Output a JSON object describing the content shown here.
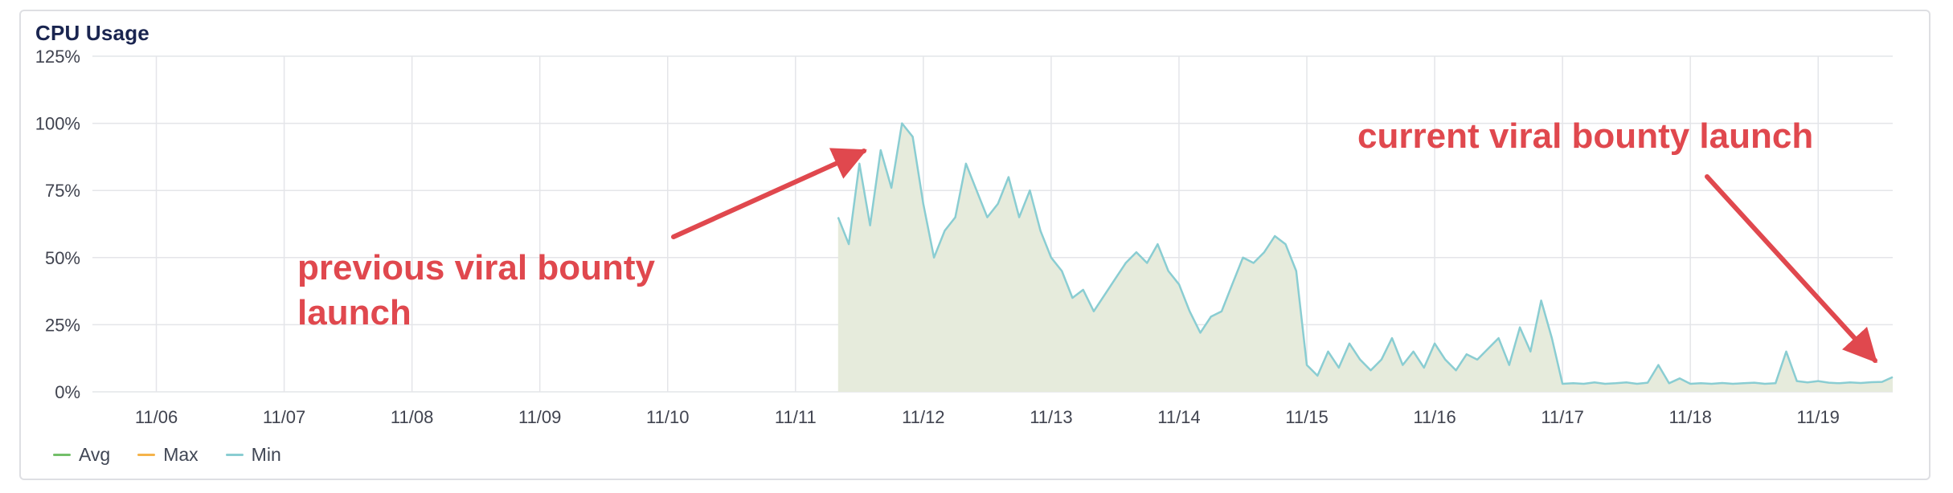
{
  "panel": {
    "title": "CPU Usage"
  },
  "colors": {
    "avg": "#73bf69",
    "max": "#f5b34a",
    "min": "#8acdd2",
    "fill": "#e6ebdc",
    "grid": "#e4e5e9",
    "annotation": "#e0484e",
    "axis_text": "#40434f"
  },
  "legend": [
    {
      "label": "Avg",
      "color_key": "avg"
    },
    {
      "label": "Max",
      "color_key": "max"
    },
    {
      "label": "Min",
      "color_key": "min"
    }
  ],
  "annotations": [
    {
      "id": "previous",
      "lines": [
        "previous viral bounty",
        "launch"
      ]
    },
    {
      "id": "current",
      "lines": [
        "current viral bounty launch"
      ]
    }
  ],
  "chart_data": {
    "type": "area",
    "title": "CPU Usage",
    "xlabel": "",
    "ylabel": "",
    "x_tick_labels": [
      "11/06",
      "11/07",
      "11/08",
      "11/09",
      "11/10",
      "11/11",
      "11/12",
      "11/13",
      "11/14",
      "11/15",
      "11/16",
      "11/17",
      "11/18",
      "11/19"
    ],
    "y_tick_labels": [
      "0%",
      "25%",
      "50%",
      "75%",
      "100%",
      "125%"
    ],
    "ylim": [
      0,
      125
    ],
    "xlim": [
      "11/05 12:00",
      "11/19 14:00"
    ],
    "grid": true,
    "legend_position": "bottom-left",
    "series": [
      {
        "name": "Min",
        "x": [
          "11/11 08:00",
          "11/11 10:00",
          "11/11 12:00",
          "11/11 14:00",
          "11/11 16:00",
          "11/11 18:00",
          "11/11 20:00",
          "11/11 22:00",
          "11/12 00:00",
          "11/12 02:00",
          "11/12 04:00",
          "11/12 06:00",
          "11/12 08:00",
          "11/12 10:00",
          "11/12 12:00",
          "11/12 14:00",
          "11/12 16:00",
          "11/12 18:00",
          "11/12 20:00",
          "11/12 22:00",
          "11/13 00:00",
          "11/13 02:00",
          "11/13 04:00",
          "11/13 06:00",
          "11/13 08:00",
          "11/13 10:00",
          "11/13 12:00",
          "11/13 14:00",
          "11/13 16:00",
          "11/13 18:00",
          "11/13 20:00",
          "11/13 22:00",
          "11/14 00:00",
          "11/14 02:00",
          "11/14 04:00",
          "11/14 06:00",
          "11/14 08:00",
          "11/14 10:00",
          "11/14 12:00",
          "11/14 14:00",
          "11/14 16:00",
          "11/14 18:00",
          "11/14 20:00",
          "11/14 22:00",
          "11/15 00:00",
          "11/15 02:00",
          "11/15 04:00",
          "11/15 06:00",
          "11/15 08:00",
          "11/15 10:00",
          "11/15 12:00",
          "11/15 14:00",
          "11/15 16:00",
          "11/15 18:00",
          "11/15 20:00",
          "11/15 22:00",
          "11/16 00:00",
          "11/16 02:00",
          "11/16 04:00",
          "11/16 06:00",
          "11/16 08:00",
          "11/16 10:00",
          "11/16 12:00",
          "11/16 14:00",
          "11/16 16:00",
          "11/16 18:00",
          "11/16 20:00",
          "11/16 22:00",
          "11/17 00:00",
          "11/17 02:00",
          "11/17 04:00",
          "11/17 06:00",
          "11/17 08:00",
          "11/17 10:00",
          "11/17 12:00",
          "11/17 14:00",
          "11/17 16:00",
          "11/17 18:00",
          "11/17 20:00",
          "11/17 22:00",
          "11/18 00:00",
          "11/18 02:00",
          "11/18 04:00",
          "11/18 06:00",
          "11/18 08:00",
          "11/18 10:00",
          "11/18 12:00",
          "11/18 14:00",
          "11/18 16:00",
          "11/18 18:00",
          "11/18 20:00",
          "11/18 22:00",
          "11/19 00:00",
          "11/19 02:00",
          "11/19 04:00",
          "11/19 06:00",
          "11/19 08:00",
          "11/19 10:00",
          "11/19 12:00",
          "11/19 14:00"
        ],
        "values": [
          65,
          55,
          85,
          62,
          90,
          76,
          100,
          95,
          70,
          50,
          60,
          65,
          85,
          75,
          65,
          70,
          80,
          65,
          75,
          60,
          50,
          45,
          35,
          38,
          30,
          36,
          42,
          48,
          52,
          48,
          55,
          45,
          40,
          30,
          22,
          28,
          30,
          40,
          50,
          48,
          52,
          58,
          55,
          45,
          10,
          6,
          15,
          9,
          18,
          12,
          8,
          12,
          20,
          10,
          15,
          9,
          18,
          12,
          8,
          14,
          12,
          16,
          20,
          10,
          24,
          15,
          34,
          20,
          3,
          3.2,
          3,
          3.5,
          3,
          3.2,
          3.5,
          3,
          3.4,
          10,
          3.2,
          5,
          3,
          3.2,
          3,
          3.3,
          3,
          3.2,
          3.4,
          3,
          3.2,
          15,
          4,
          3.5,
          4,
          3.4,
          3.2,
          3.5,
          3.3,
          3.6,
          3.7,
          5.5
        ]
      },
      {
        "name": "Avg",
        "x": [],
        "values": []
      },
      {
        "name": "Max",
        "x": [],
        "values": []
      }
    ]
  }
}
